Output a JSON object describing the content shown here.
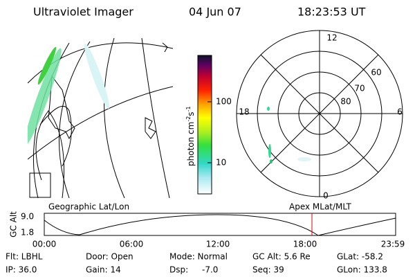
{
  "header": {
    "title": "Ultraviolet Imager",
    "date": "04 Jun 07",
    "time": "18:23:53 UT"
  },
  "colorbar": {
    "label_parts": [
      "photon cm",
      "-2",
      "s",
      "-1"
    ],
    "ticks": [
      "100",
      "10"
    ]
  },
  "polar": {
    "mlt_labels": [
      "12",
      "18",
      "6",
      "0"
    ],
    "lat_labels": [
      "60",
      "70",
      "80"
    ]
  },
  "timeline": {
    "left_title": "Geographic Lat/Lon",
    "right_title": "Apex MLat/MLT",
    "axis_label": "GC Alt",
    "y_labels": [
      "9.0",
      "1.8"
    ],
    "times": [
      "00:00",
      "06:00",
      "12:00",
      "18:00",
      "23:59"
    ]
  },
  "status": {
    "rows": [
      [
        "Flt: LBHL",
        "Door: Open",
        "Mode: Normal",
        "GC Alt: 5.6 Re",
        "GLat: -58.2"
      ],
      [
        "IP: 36.0",
        "Gain: 14",
        "Dsp:",
        "Seq: 39",
        "GLon: 133.8"
      ]
    ],
    "dsp_value": "-7.0"
  }
}
